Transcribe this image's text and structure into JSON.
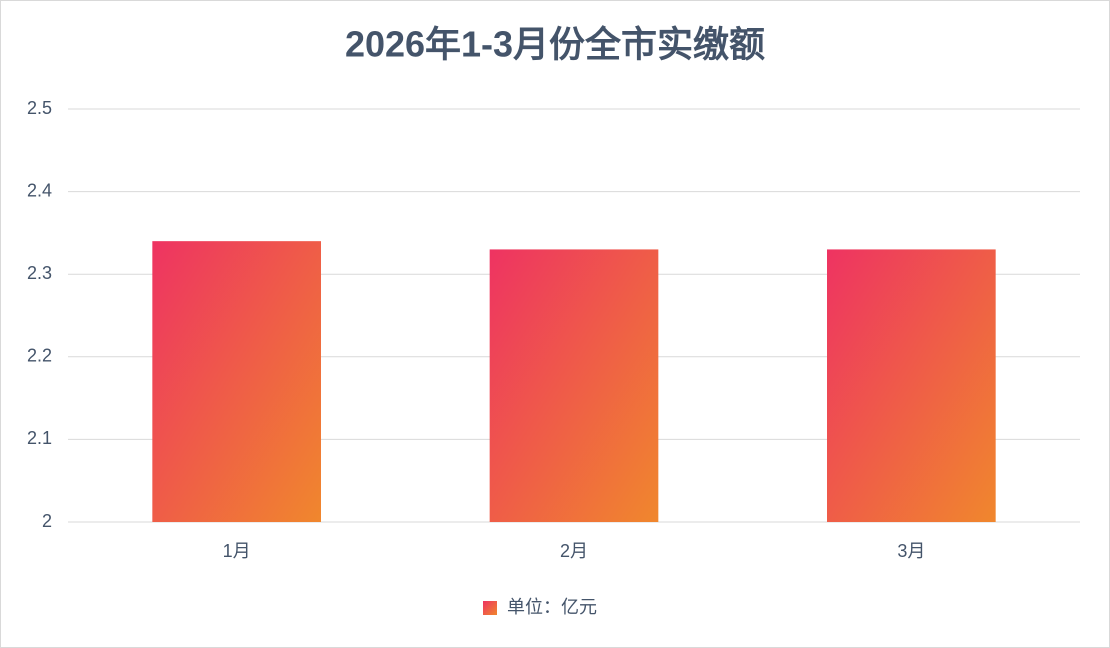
{
  "chart_data": {
    "type": "bar",
    "title": "2026年1-3月份全市实缴额",
    "categories": [
      "1月",
      "2月",
      "3月"
    ],
    "series": [
      {
        "name": "单位：亿元",
        "colors": [
          "#ee3362",
          "#f0872d"
        ],
        "values": [
          2.34,
          2.33,
          2.33
        ]
      }
    ],
    "ylim": [
      2,
      2.5
    ],
    "yticks": [
      2,
      2.1,
      2.2,
      2.3,
      2.4,
      2.5
    ],
    "grid": true
  }
}
